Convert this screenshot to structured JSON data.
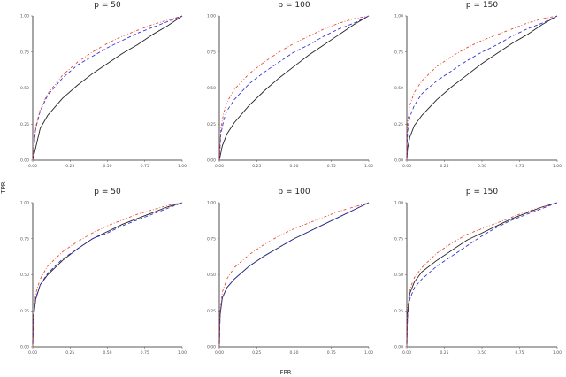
{
  "figure": {
    "xlabel": "FPR",
    "ylabel": "TPR"
  },
  "chart_data": [
    {
      "type": "line",
      "title": "p = 50",
      "xlim": [
        0,
        1
      ],
      "ylim": [
        0,
        1
      ],
      "xticks": [
        "0.00",
        "0.25",
        "0.50",
        "0.75",
        "1.00"
      ],
      "yticks": [
        "0.00",
        "0.25",
        "0.50",
        "0.75",
        "1.00"
      ],
      "series": [
        {
          "style": "solid",
          "color": "#222222",
          "x": [
            0,
            0.05,
            0.1,
            0.2,
            0.3,
            0.4,
            0.5,
            0.6,
            0.7,
            0.8,
            0.9,
            1.0
          ],
          "y": [
            0,
            0.22,
            0.31,
            0.43,
            0.52,
            0.6,
            0.67,
            0.74,
            0.8,
            0.87,
            0.93,
            1.0
          ]
        },
        {
          "style": "dashed",
          "color": "#2b2bd6",
          "x": [
            0,
            0.02,
            0.05,
            0.1,
            0.2,
            0.3,
            0.4,
            0.5,
            0.6,
            0.7,
            0.8,
            0.9,
            1.0
          ],
          "y": [
            0,
            0.22,
            0.34,
            0.45,
            0.57,
            0.66,
            0.72,
            0.78,
            0.83,
            0.88,
            0.92,
            0.96,
            1.0
          ]
        },
        {
          "style": "dotdash",
          "color": "#e8402a",
          "x": [
            0,
            0.02,
            0.05,
            0.1,
            0.2,
            0.3,
            0.4,
            0.5,
            0.6,
            0.7,
            0.8,
            0.9,
            1.0
          ],
          "y": [
            0,
            0.23,
            0.35,
            0.46,
            0.59,
            0.68,
            0.75,
            0.81,
            0.86,
            0.9,
            0.94,
            0.97,
            1.0
          ]
        }
      ]
    },
    {
      "type": "line",
      "title": "p = 100",
      "xlim": [
        0,
        1
      ],
      "ylim": [
        0,
        1
      ],
      "xticks": [
        "0.00",
        "0.25",
        "0.50",
        "0.75",
        "1.00"
      ],
      "yticks": [
        "0.00",
        "0.25",
        "0.50",
        "0.75",
        "1.00"
      ],
      "series": [
        {
          "style": "solid",
          "color": "#222222",
          "x": [
            0,
            0.02,
            0.05,
            0.1,
            0.2,
            0.3,
            0.4,
            0.5,
            0.6,
            0.7,
            0.8,
            0.9,
            1.0
          ],
          "y": [
            0,
            0.1,
            0.18,
            0.26,
            0.38,
            0.48,
            0.57,
            0.65,
            0.73,
            0.8,
            0.87,
            0.94,
            1.0
          ]
        },
        {
          "style": "dashed",
          "color": "#2b2bd6",
          "x": [
            0,
            0.01,
            0.03,
            0.05,
            0.1,
            0.2,
            0.3,
            0.4,
            0.5,
            0.6,
            0.7,
            0.8,
            0.9,
            1.0
          ],
          "y": [
            0,
            0.18,
            0.28,
            0.34,
            0.42,
            0.53,
            0.61,
            0.68,
            0.75,
            0.8,
            0.86,
            0.91,
            0.95,
            1.0
          ]
        },
        {
          "style": "dotdash",
          "color": "#e8402a",
          "x": [
            0,
            0.01,
            0.03,
            0.05,
            0.1,
            0.2,
            0.3,
            0.4,
            0.5,
            0.6,
            0.7,
            0.8,
            0.9,
            1.0
          ],
          "y": [
            0,
            0.22,
            0.33,
            0.4,
            0.49,
            0.6,
            0.68,
            0.75,
            0.81,
            0.86,
            0.91,
            0.95,
            0.98,
            1.0
          ]
        }
      ]
    },
    {
      "type": "line",
      "title": "p = 150",
      "xlim": [
        0,
        1
      ],
      "ylim": [
        0,
        1
      ],
      "xticks": [
        "0.00",
        "0.25",
        "0.50",
        "0.75",
        "1.00"
      ],
      "yticks": [
        "0.00",
        "0.25",
        "0.50",
        "0.75",
        "1.00"
      ],
      "series": [
        {
          "style": "solid",
          "color": "#222222",
          "x": [
            0,
            0.005,
            0.02,
            0.05,
            0.1,
            0.2,
            0.3,
            0.4,
            0.5,
            0.6,
            0.7,
            0.8,
            0.9,
            1.0
          ],
          "y": [
            0,
            0.08,
            0.16,
            0.24,
            0.31,
            0.42,
            0.51,
            0.59,
            0.67,
            0.74,
            0.81,
            0.87,
            0.94,
            1.0
          ]
        },
        {
          "style": "dashed",
          "color": "#2b2bd6",
          "x": [
            0,
            0.005,
            0.02,
            0.05,
            0.1,
            0.2,
            0.3,
            0.4,
            0.5,
            0.6,
            0.7,
            0.8,
            0.9,
            1.0
          ],
          "y": [
            0,
            0.2,
            0.3,
            0.38,
            0.46,
            0.55,
            0.62,
            0.69,
            0.75,
            0.8,
            0.86,
            0.91,
            0.95,
            1.0
          ]
        },
        {
          "style": "dotdash",
          "color": "#e8402a",
          "x": [
            0,
            0.005,
            0.02,
            0.05,
            0.1,
            0.2,
            0.3,
            0.4,
            0.5,
            0.6,
            0.7,
            0.8,
            0.9,
            1.0
          ],
          "y": [
            0,
            0.26,
            0.38,
            0.47,
            0.55,
            0.65,
            0.72,
            0.78,
            0.83,
            0.87,
            0.91,
            0.95,
            0.98,
            1.0
          ]
        }
      ]
    },
    {
      "type": "line",
      "title": "p = 50",
      "xlim": [
        0,
        1
      ],
      "ylim": [
        0,
        1
      ],
      "xticks": [
        "0.00",
        "0.25",
        "0.50",
        "0.75",
        "1.00"
      ],
      "yticks": [
        "0.00",
        "0.25",
        "0.50",
        "0.75",
        "1.00"
      ],
      "series": [
        {
          "style": "solid",
          "color": "#222222",
          "x": [
            0,
            0.005,
            0.02,
            0.05,
            0.1,
            0.2,
            0.3,
            0.4,
            0.5,
            0.6,
            0.7,
            0.8,
            0.9,
            1.0
          ],
          "y": [
            0,
            0.2,
            0.33,
            0.43,
            0.5,
            0.6,
            0.68,
            0.75,
            0.8,
            0.85,
            0.89,
            0.93,
            0.97,
            1.0
          ]
        },
        {
          "style": "dashed",
          "color": "#2b2bd6",
          "x": [
            0,
            0.005,
            0.02,
            0.05,
            0.1,
            0.2,
            0.3,
            0.4,
            0.5,
            0.6,
            0.7,
            0.8,
            0.9,
            1.0
          ],
          "y": [
            0,
            0.21,
            0.34,
            0.43,
            0.51,
            0.61,
            0.68,
            0.75,
            0.79,
            0.84,
            0.88,
            0.92,
            0.96,
            1.0
          ]
        },
        {
          "style": "dotdash",
          "color": "#e8402a",
          "x": [
            0,
            0.005,
            0.02,
            0.05,
            0.1,
            0.2,
            0.3,
            0.4,
            0.5,
            0.6,
            0.7,
            0.8,
            0.9,
            1.0
          ],
          "y": [
            0,
            0.23,
            0.37,
            0.47,
            0.56,
            0.66,
            0.73,
            0.79,
            0.84,
            0.88,
            0.92,
            0.95,
            0.98,
            1.0
          ]
        }
      ]
    },
    {
      "type": "line",
      "title": "p = 100",
      "xlim": [
        0,
        1
      ],
      "ylim": [
        0,
        1
      ],
      "xticks": [
        "0.00",
        "0.25",
        "0.50",
        "0.75",
        "1.00"
      ],
      "yticks": [
        "0.00",
        "0.25",
        "0.50",
        "0.75",
        "1.00"
      ],
      "series": [
        {
          "style": "solid",
          "color": "#222222",
          "x": [
            0,
            0.005,
            0.02,
            0.05,
            0.1,
            0.2,
            0.3,
            0.4,
            0.5,
            0.6,
            0.7,
            0.8,
            0.9,
            1.0
          ],
          "y": [
            0,
            0.22,
            0.34,
            0.41,
            0.47,
            0.56,
            0.63,
            0.69,
            0.75,
            0.8,
            0.85,
            0.9,
            0.95,
            1.0
          ]
        },
        {
          "style": "dashed",
          "color": "#2b2bd6",
          "x": [
            0,
            0.005,
            0.02,
            0.05,
            0.1,
            0.2,
            0.3,
            0.4,
            0.5,
            0.6,
            0.7,
            0.8,
            0.9,
            1.0
          ],
          "y": [
            0,
            0.22,
            0.34,
            0.41,
            0.47,
            0.56,
            0.63,
            0.69,
            0.75,
            0.8,
            0.85,
            0.9,
            0.95,
            1.0
          ]
        },
        {
          "style": "dotdash",
          "color": "#e8402a",
          "x": [
            0,
            0.005,
            0.02,
            0.05,
            0.1,
            0.2,
            0.3,
            0.4,
            0.5,
            0.6,
            0.7,
            0.8,
            0.9,
            1.0
          ],
          "y": [
            0,
            0.25,
            0.38,
            0.47,
            0.55,
            0.64,
            0.71,
            0.77,
            0.82,
            0.86,
            0.9,
            0.94,
            0.97,
            1.0
          ]
        }
      ]
    },
    {
      "type": "line",
      "title": "p = 150",
      "xlim": [
        0,
        1
      ],
      "ylim": [
        0,
        1
      ],
      "xticks": [
        "0.00",
        "0.25",
        "0.50",
        "0.75",
        "1.00"
      ],
      "yticks": [
        "0.00",
        "0.25",
        "0.50",
        "0.75",
        "1.00"
      ],
      "series": [
        {
          "style": "solid",
          "color": "#222222",
          "x": [
            0,
            0.005,
            0.02,
            0.05,
            0.1,
            0.2,
            0.3,
            0.4,
            0.5,
            0.6,
            0.7,
            0.8,
            0.9,
            1.0
          ],
          "y": [
            0,
            0.24,
            0.37,
            0.45,
            0.52,
            0.6,
            0.67,
            0.74,
            0.79,
            0.84,
            0.89,
            0.93,
            0.97,
            1.0
          ]
        },
        {
          "style": "dashed",
          "color": "#2b2bd6",
          "x": [
            0,
            0.005,
            0.02,
            0.05,
            0.1,
            0.2,
            0.3,
            0.4,
            0.5,
            0.6,
            0.7,
            0.8,
            0.9,
            1.0
          ],
          "y": [
            0,
            0.21,
            0.33,
            0.41,
            0.47,
            0.56,
            0.63,
            0.7,
            0.77,
            0.83,
            0.88,
            0.92,
            0.96,
            1.0
          ]
        },
        {
          "style": "dotdash",
          "color": "#e8402a",
          "x": [
            0,
            0.005,
            0.02,
            0.05,
            0.1,
            0.2,
            0.3,
            0.4,
            0.5,
            0.6,
            0.7,
            0.8,
            0.9,
            1.0
          ],
          "y": [
            0,
            0.27,
            0.4,
            0.48,
            0.55,
            0.65,
            0.72,
            0.78,
            0.82,
            0.86,
            0.9,
            0.94,
            0.97,
            1.0
          ]
        }
      ]
    }
  ]
}
